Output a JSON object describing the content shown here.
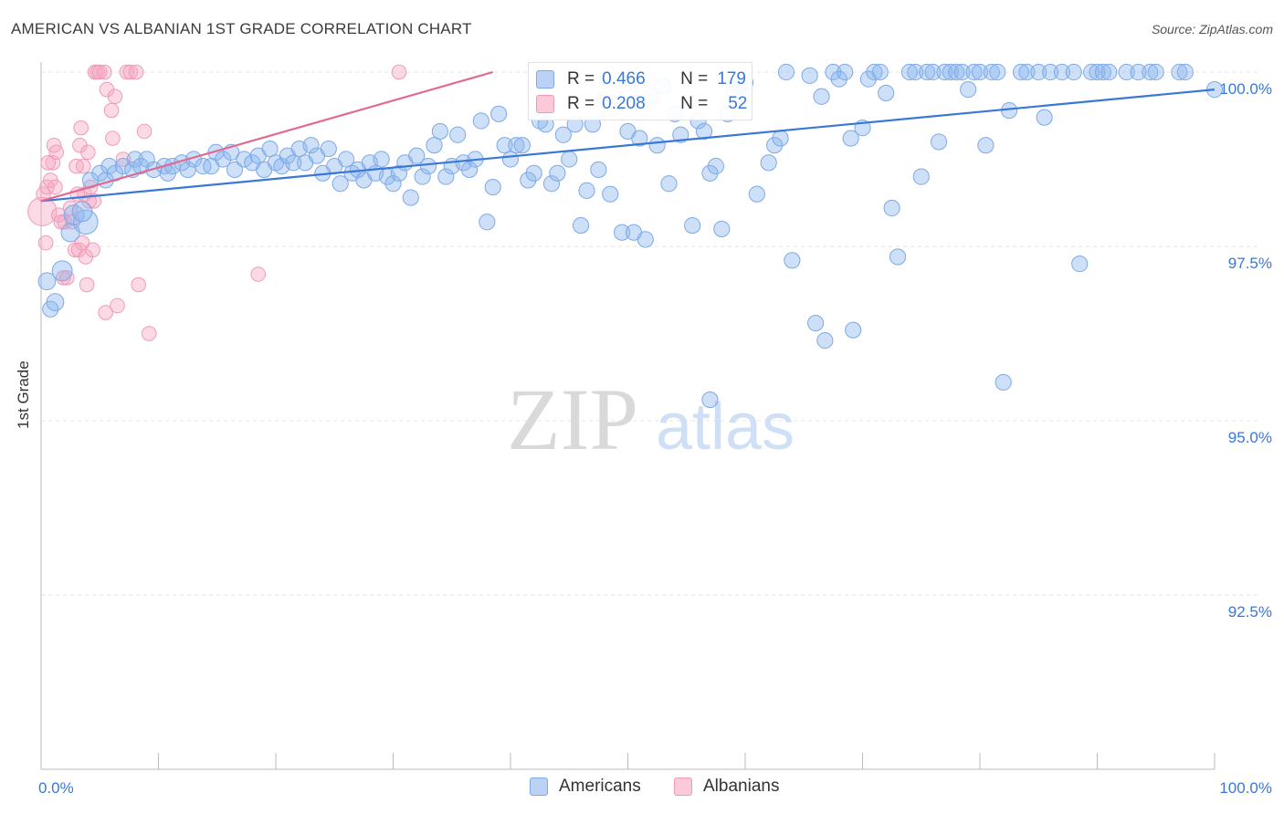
{
  "chart_title": "AMERICAN VS ALBANIAN 1ST GRADE CORRELATION CHART",
  "source": "Source: ZipAtlas.com",
  "watermark": {
    "zip": "ZIP",
    "atlas": "atlas"
  },
  "legend_stats": [
    {
      "r_label": "R =",
      "r_value": "0.466",
      "n_label": "N =",
      "n_value": "179",
      "color": "#8ab4ee"
    },
    {
      "r_label": "R =",
      "r_value": "0.208",
      "n_label": "N =",
      "n_value": "52",
      "color": "#f5a7c0"
    }
  ],
  "chart_data": {
    "type": "scatter",
    "title": "AMERICAN VS ALBANIAN 1ST GRADE CORRELATION CHART",
    "xlabel": "",
    "ylabel": "1st Grade",
    "xlim": [
      0,
      100
    ],
    "ylim": [
      90.0,
      100.3
    ],
    "x_tick_labels": [
      "0.0%",
      "100.0%"
    ],
    "y_ticks": [
      100.0,
      97.5,
      95.0,
      92.5
    ],
    "y_tick_labels": [
      "100.0%",
      "97.5%",
      "95.0%",
      "92.5%"
    ],
    "grid": true,
    "legend_position": "bottom-center",
    "series": [
      {
        "name": "Americans",
        "color": "#3a78d8",
        "fill": "#8ab4ee",
        "trend": {
          "x": [
            0,
            100
          ],
          "y": [
            98.15,
            99.75
          ]
        },
        "points": [
          [
            0.5,
            97.0,
            12
          ],
          [
            0.8,
            96.6,
            11
          ],
          [
            1.2,
            96.7,
            12
          ],
          [
            1.8,
            97.15,
            14
          ],
          [
            2.5,
            97.7,
            13
          ],
          [
            2.8,
            97.95,
            14
          ],
          [
            3.8,
            97.85,
            17
          ],
          [
            3.5,
            98.0,
            14
          ],
          [
            4.2,
            98.45,
            11
          ],
          [
            5.0,
            98.55,
            11
          ],
          [
            5.5,
            98.45,
            11
          ],
          [
            5.8,
            98.65,
            11
          ],
          [
            6.3,
            98.55,
            11
          ],
          [
            7.0,
            98.65,
            11
          ],
          [
            7.8,
            98.6,
            11
          ],
          [
            8.0,
            98.75,
            11
          ],
          [
            8.5,
            98.65,
            11
          ],
          [
            9.0,
            98.75,
            11
          ],
          [
            9.6,
            98.6,
            11
          ],
          [
            10.5,
            98.65,
            11
          ],
          [
            10.8,
            98.55,
            11
          ],
          [
            11.2,
            98.65,
            11
          ],
          [
            12.0,
            98.7,
            11
          ],
          [
            12.5,
            98.6,
            11
          ],
          [
            13.0,
            98.75,
            11
          ],
          [
            13.8,
            98.65,
            11
          ],
          [
            14.5,
            98.65,
            11
          ],
          [
            14.9,
            98.85,
            11
          ],
          [
            15.5,
            98.75,
            11
          ],
          [
            16.2,
            98.85,
            11
          ],
          [
            16.5,
            98.6,
            11
          ],
          [
            17.3,
            98.75,
            11
          ],
          [
            18.0,
            98.7,
            11
          ],
          [
            18.5,
            98.8,
            11
          ],
          [
            19.0,
            98.6,
            11
          ],
          [
            19.5,
            98.9,
            11
          ],
          [
            20.0,
            98.7,
            11
          ],
          [
            20.5,
            98.65,
            11
          ],
          [
            21.0,
            98.8,
            11
          ],
          [
            21.5,
            98.7,
            11
          ],
          [
            22.0,
            98.9,
            11
          ],
          [
            22.5,
            98.7,
            11
          ],
          [
            23.0,
            98.95,
            11
          ],
          [
            23.5,
            98.8,
            11
          ],
          [
            24.0,
            98.55,
            11
          ],
          [
            24.5,
            98.9,
            11
          ],
          [
            25.0,
            98.65,
            11
          ],
          [
            25.5,
            98.4,
            11
          ],
          [
            26.0,
            98.75,
            11
          ],
          [
            26.5,
            98.55,
            11
          ],
          [
            27.0,
            98.6,
            11
          ],
          [
            27.5,
            98.45,
            11
          ],
          [
            28.0,
            98.7,
            11
          ],
          [
            28.5,
            98.55,
            11
          ],
          [
            29.0,
            98.75,
            11
          ],
          [
            29.5,
            98.5,
            11
          ],
          [
            30.0,
            98.4,
            11
          ],
          [
            30.5,
            98.55,
            11
          ],
          [
            31.0,
            98.7,
            11
          ],
          [
            31.5,
            98.2,
            11
          ],
          [
            32.0,
            98.8,
            11
          ],
          [
            32.5,
            98.5,
            11
          ],
          [
            33.0,
            98.65,
            11
          ],
          [
            33.5,
            98.95,
            11
          ],
          [
            34.0,
            99.15,
            11
          ],
          [
            34.5,
            98.5,
            11
          ],
          [
            35.0,
            98.65,
            11
          ],
          [
            35.5,
            99.1,
            11
          ],
          [
            36.0,
            98.7,
            11
          ],
          [
            36.5,
            98.6,
            11
          ],
          [
            37.0,
            98.75,
            11
          ],
          [
            37.5,
            99.3,
            11
          ],
          [
            38.0,
            97.85,
            11
          ],
          [
            38.5,
            98.35,
            11
          ],
          [
            39.0,
            99.4,
            11
          ],
          [
            39.5,
            98.95,
            11
          ],
          [
            40.0,
            98.75,
            11
          ],
          [
            40.5,
            98.95,
            11
          ],
          [
            41.0,
            98.95,
            11
          ],
          [
            41.5,
            98.45,
            11
          ],
          [
            42.0,
            98.55,
            11
          ],
          [
            42.5,
            99.3,
            11
          ],
          [
            43.0,
            99.25,
            11
          ],
          [
            43.5,
            98.4,
            11
          ],
          [
            44.0,
            98.55,
            11
          ],
          [
            44.5,
            99.1,
            11
          ],
          [
            45.0,
            98.75,
            11
          ],
          [
            45.5,
            99.25,
            11
          ],
          [
            46.0,
            97.8,
            11
          ],
          [
            46.5,
            98.3,
            11
          ],
          [
            47.0,
            99.25,
            11
          ],
          [
            47.5,
            98.6,
            11
          ],
          [
            48.0,
            99.6,
            11
          ],
          [
            48.5,
            98.25,
            11
          ],
          [
            49.5,
            97.7,
            11
          ],
          [
            50.0,
            99.15,
            11
          ],
          [
            50.5,
            97.7,
            11
          ],
          [
            51.0,
            99.05,
            11
          ],
          [
            51.5,
            97.6,
            11
          ],
          [
            52.0,
            99.65,
            11
          ],
          [
            52.5,
            98.95,
            11
          ],
          [
            53.0,
            99.8,
            11
          ],
          [
            53.5,
            98.4,
            11
          ],
          [
            54.0,
            99.4,
            11
          ],
          [
            54.5,
            99.1,
            11
          ],
          [
            55.5,
            97.8,
            11
          ],
          [
            56.0,
            99.3,
            11
          ],
          [
            56.5,
            99.15,
            11
          ],
          [
            57.0,
            98.55,
            11
          ],
          [
            57.5,
            98.65,
            11
          ],
          [
            58.0,
            97.75,
            11
          ],
          [
            58.5,
            99.4,
            11
          ],
          [
            59.0,
            99.75,
            11
          ],
          [
            60.0,
            99.85,
            11
          ],
          [
            61.0,
            98.25,
            11
          ],
          [
            62.0,
            98.7,
            11
          ],
          [
            62.5,
            98.95,
            11
          ],
          [
            63.0,
            99.05,
            11
          ],
          [
            63.5,
            100.0,
            11
          ],
          [
            64.0,
            97.3,
            11
          ],
          [
            65.5,
            99.95,
            11
          ],
          [
            66.0,
            96.4,
            11
          ],
          [
            66.5,
            99.65,
            11
          ],
          [
            66.8,
            96.15,
            11
          ],
          [
            67.5,
            100.0,
            11
          ],
          [
            68.0,
            99.9,
            11
          ],
          [
            68.5,
            100.0,
            11
          ],
          [
            69.0,
            99.05,
            11
          ],
          [
            69.2,
            96.3,
            11
          ],
          [
            70.0,
            99.2,
            11
          ],
          [
            70.5,
            99.9,
            11
          ],
          [
            71.0,
            100.0,
            11
          ],
          [
            71.5,
            100.0,
            11
          ],
          [
            72.0,
            99.7,
            11
          ],
          [
            72.5,
            98.05,
            11
          ],
          [
            73.0,
            97.35,
            11
          ],
          [
            74.0,
            100.0,
            11
          ],
          [
            74.5,
            100.0,
            11
          ],
          [
            75.0,
            98.5,
            11
          ],
          [
            75.5,
            100.0,
            11
          ],
          [
            76.0,
            100.0,
            11
          ],
          [
            76.5,
            99.0,
            11
          ],
          [
            77.0,
            100.0,
            11
          ],
          [
            77.5,
            100.0,
            11
          ],
          [
            78.0,
            100.0,
            11
          ],
          [
            78.5,
            100.0,
            11
          ],
          [
            79.0,
            99.75,
            11
          ],
          [
            79.5,
            100.0,
            11
          ],
          [
            80.0,
            100.0,
            11
          ],
          [
            80.5,
            98.95,
            11
          ],
          [
            81.0,
            100.0,
            11
          ],
          [
            81.5,
            100.0,
            11
          ],
          [
            82.0,
            95.55,
            11
          ],
          [
            82.5,
            99.45,
            11
          ],
          [
            83.5,
            100.0,
            11
          ],
          [
            84.0,
            100.0,
            11
          ],
          [
            85.0,
            100.0,
            11
          ],
          [
            85.5,
            99.35,
            11
          ],
          [
            86.0,
            100.0,
            11
          ],
          [
            87.0,
            100.0,
            11
          ],
          [
            88.0,
            100.0,
            11
          ],
          [
            88.5,
            97.25,
            11
          ],
          [
            89.5,
            100.0,
            11
          ],
          [
            90.0,
            100.0,
            11
          ],
          [
            90.5,
            100.0,
            11
          ],
          [
            91.0,
            100.0,
            11
          ],
          [
            92.5,
            100.0,
            11
          ],
          [
            93.5,
            100.0,
            11
          ],
          [
            94.5,
            100.0,
            11
          ],
          [
            95.0,
            100.0,
            11
          ],
          [
            97.0,
            100.0,
            11
          ],
          [
            97.5,
            100.0,
            11
          ],
          [
            100.0,
            99.75,
            11
          ],
          [
            57.0,
            95.3,
            11
          ],
          [
            59.5,
            99.8,
            11
          ]
        ]
      },
      {
        "name": "Albanians",
        "color": "#e06a90",
        "fill": "#f5a7c0",
        "trend": {
          "x": [
            0,
            38.5
          ],
          "y": [
            98.15,
            100.0
          ]
        },
        "points": [
          [
            0.1,
            98.0,
            20
          ],
          [
            0.2,
            98.25,
            10
          ],
          [
            0.4,
            97.55,
            10
          ],
          [
            0.5,
            98.35,
            10
          ],
          [
            0.8,
            98.45,
            10
          ],
          [
            1.0,
            98.7,
            10
          ],
          [
            1.1,
            98.95,
            10
          ],
          [
            1.3,
            98.85,
            10
          ],
          [
            1.5,
            97.95,
            10
          ],
          [
            1.7,
            97.85,
            10
          ],
          [
            1.9,
            97.05,
            10
          ],
          [
            2.2,
            97.05,
            10
          ],
          [
            2.5,
            98.05,
            10
          ],
          [
            2.9,
            97.45,
            10
          ],
          [
            3.0,
            98.65,
            10
          ],
          [
            3.2,
            97.45,
            10
          ],
          [
            3.3,
            98.95,
            10
          ],
          [
            3.4,
            99.2,
            10
          ],
          [
            3.5,
            97.55,
            10
          ],
          [
            3.6,
            98.65,
            10
          ],
          [
            3.7,
            98.25,
            10
          ],
          [
            3.8,
            97.35,
            10
          ],
          [
            3.9,
            96.95,
            10
          ],
          [
            4.0,
            98.85,
            10
          ],
          [
            4.2,
            98.35,
            10
          ],
          [
            4.4,
            97.45,
            10
          ],
          [
            4.5,
            98.15,
            10
          ],
          [
            4.6,
            100.0,
            10
          ],
          [
            4.8,
            100.0,
            10
          ],
          [
            5.0,
            100.0,
            10
          ],
          [
            5.4,
            100.0,
            10
          ],
          [
            5.5,
            96.55,
            10
          ],
          [
            5.6,
            99.75,
            10
          ],
          [
            6.0,
            99.45,
            10
          ],
          [
            6.1,
            99.05,
            10
          ],
          [
            6.3,
            99.65,
            10
          ],
          [
            6.5,
            96.65,
            10
          ],
          [
            7.0,
            98.75,
            10
          ],
          [
            7.3,
            100.0,
            10
          ],
          [
            7.6,
            100.0,
            10
          ],
          [
            8.1,
            100.0,
            10
          ],
          [
            8.3,
            96.95,
            10
          ],
          [
            8.8,
            99.15,
            10
          ],
          [
            9.2,
            96.25,
            10
          ],
          [
            18.5,
            97.1,
            10
          ],
          [
            30.5,
            100.0,
            10
          ],
          [
            2.0,
            97.85,
            10
          ],
          [
            1.2,
            98.35,
            10
          ],
          [
            2.7,
            97.85,
            10
          ],
          [
            3.1,
            98.25,
            10
          ],
          [
            4.1,
            98.15,
            10
          ],
          [
            0.6,
            98.7,
            10
          ]
        ]
      }
    ]
  }
}
